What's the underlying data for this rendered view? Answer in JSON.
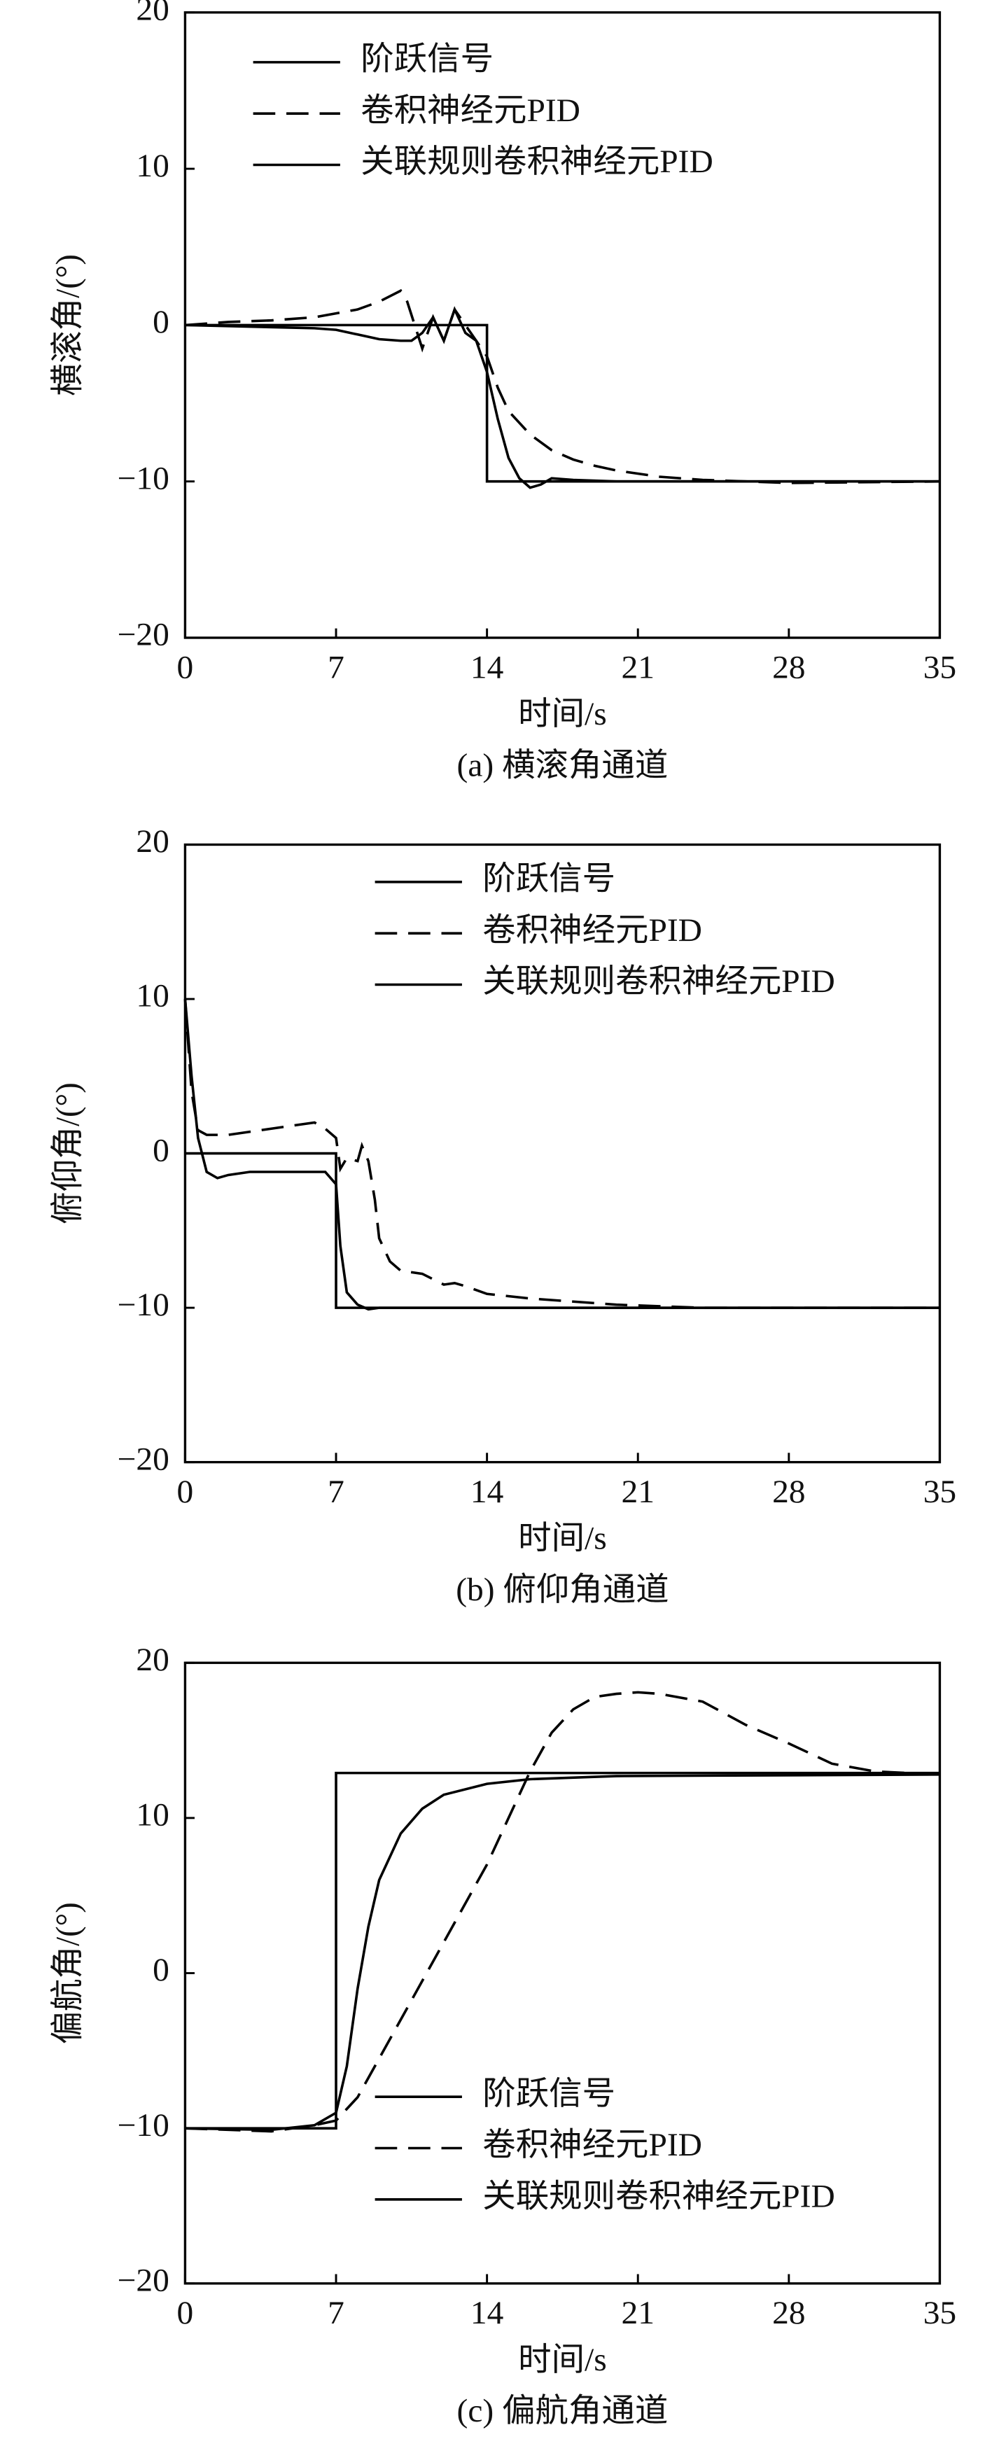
{
  "chart_data": [
    {
      "type": "line",
      "caption": "(a) 横滚角通道",
      "xlabel": "时间/s",
      "ylabel": "横滚角/(°)",
      "xlim": [
        0,
        35
      ],
      "ylim": [
        -20,
        20
      ],
      "xticks": [
        0,
        7,
        14,
        21,
        28,
        35
      ],
      "yticks": [
        {
          "value": -20,
          "label": "−20"
        },
        {
          "value": -10,
          "label": "−10"
        },
        0,
        10,
        20
      ],
      "series": [
        {
          "name": "阶跃信号",
          "color": "#000000",
          "dash": "solid",
          "x": [
            0,
            14,
            14,
            35
          ],
          "values": [
            0,
            0,
            -10,
            -10
          ]
        },
        {
          "name": "卷积神经元PID",
          "color": "#000000",
          "dash": "dashed",
          "x": [
            0,
            2,
            4,
            6,
            8,
            9,
            10,
            10.3,
            11,
            11.5,
            12,
            12.5,
            13,
            14,
            14.5,
            15,
            16,
            17,
            18,
            19,
            20,
            22,
            24,
            26,
            28,
            35
          ],
          "values": [
            0,
            0.2,
            0.3,
            0.5,
            1,
            1.5,
            2.2,
            1.5,
            -1.5,
            0.5,
            -1,
            1,
            0,
            -2,
            -4,
            -5.5,
            -7,
            -8,
            -8.6,
            -9,
            -9.3,
            -9.7,
            -9.9,
            -10,
            -10.1,
            -10
          ]
        },
        {
          "name": "关联规则卷积神经元PID",
          "color": "#000000",
          "dash": "solid",
          "x": [
            0,
            3,
            6,
            7,
            8,
            9,
            10,
            10.5,
            11,
            11.5,
            12,
            12.5,
            13,
            13.5,
            14,
            14.5,
            15,
            15.5,
            16,
            16.5,
            17,
            18,
            20,
            35
          ],
          "values": [
            0,
            -0.1,
            -0.2,
            -0.3,
            -0.6,
            -0.9,
            -1,
            -1,
            -0.5,
            0.5,
            -1,
            1,
            -0.5,
            -1,
            -3,
            -6,
            -8.5,
            -9.8,
            -10.4,
            -10.2,
            -9.8,
            -9.9,
            -10,
            -10
          ]
        }
      ]
    },
    {
      "type": "line",
      "caption": "(b) 俯仰角通道",
      "xlabel": "时间/s",
      "ylabel": "俯仰角/(°)",
      "xlim": [
        0,
        35
      ],
      "ylim": [
        -20,
        20
      ],
      "xticks": [
        0,
        7,
        14,
        21,
        28,
        35
      ],
      "yticks": [
        {
          "value": -20,
          "label": "−20"
        },
        {
          "value": -10,
          "label": "−10"
        },
        0,
        10,
        20
      ],
      "series": [
        {
          "name": "阶跃信号",
          "color": "#000000",
          "dash": "solid",
          "x": [
            0,
            7,
            7,
            35
          ],
          "values": [
            0,
            0,
            -10,
            -10
          ]
        },
        {
          "name": "卷积神经元PID",
          "color": "#000000",
          "dash": "dashed",
          "x": [
            0,
            0.3,
            0.6,
            1,
            2,
            4,
            5,
            6,
            6.5,
            7,
            7.2,
            7.5,
            8,
            8.2,
            8.5,
            8.8,
            9,
            9.5,
            10,
            11,
            12,
            12.5,
            13,
            14,
            16,
            18,
            20,
            22,
            24,
            35
          ],
          "values": [
            10,
            4,
            1.5,
            1.2,
            1.2,
            1.6,
            1.8,
            2,
            1.6,
            1,
            -1,
            -0.3,
            -0.5,
            0.5,
            -0.5,
            -3,
            -5.5,
            -7,
            -7.6,
            -7.8,
            -8.5,
            -8.4,
            -8.6,
            -9.1,
            -9.4,
            -9.6,
            -9.8,
            -9.9,
            -10,
            -10
          ]
        },
        {
          "name": "关联规则卷积神经元PID",
          "color": "#000000",
          "dash": "solid",
          "x": [
            0,
            0.3,
            0.6,
            1,
            1.5,
            2,
            3,
            5,
            6.5,
            7,
            7.2,
            7.5,
            8,
            8.5,
            9,
            12,
            35
          ],
          "values": [
            10,
            5,
            1,
            -1.2,
            -1.6,
            -1.4,
            -1.2,
            -1.2,
            -1.2,
            -2,
            -6,
            -9,
            -9.8,
            -10.1,
            -10,
            -10,
            -10
          ]
        }
      ]
    },
    {
      "type": "line",
      "caption": "(c) 偏航角通道",
      "xlabel": "时间/s",
      "ylabel": "偏航角/(°)",
      "xlim": [
        0,
        35
      ],
      "ylim": [
        -20,
        20
      ],
      "xticks": [
        0,
        7,
        14,
        21,
        28,
        35
      ],
      "yticks": [
        {
          "value": -20,
          "label": "−20"
        },
        {
          "value": -10,
          "label": "−10"
        },
        0,
        10,
        20
      ],
      "series": [
        {
          "name": "阶跃信号",
          "color": "#000000",
          "dash": "solid",
          "x": [
            0,
            7,
            7,
            35
          ],
          "values": [
            -10,
            -10,
            12.9,
            12.9
          ]
        },
        {
          "name": "卷积神经元PID",
          "color": "#000000",
          "dash": "dashed",
          "x": [
            0,
            4,
            6,
            7,
            8,
            10,
            12,
            14,
            15,
            16,
            17,
            18,
            19,
            20,
            21,
            22,
            24,
            26,
            28,
            30,
            32,
            35
          ],
          "values": [
            -10,
            -10.2,
            -9.8,
            -9.5,
            -8,
            -3,
            2,
            7,
            10,
            13,
            15.5,
            17,
            17.8,
            18,
            18.1,
            18,
            17.5,
            16,
            14.8,
            13.5,
            13,
            12.8
          ]
        },
        {
          "name": "关联规则卷积神经元PID",
          "color": "#000000",
          "dash": "solid",
          "x": [
            0,
            4,
            6,
            7,
            7.5,
            8,
            8.5,
            9,
            10,
            11,
            12,
            14,
            16,
            20,
            35
          ],
          "values": [
            -10,
            -10.1,
            -9.8,
            -9,
            -6,
            -1,
            3,
            6,
            9,
            10.6,
            11.5,
            12.2,
            12.5,
            12.7,
            12.8
          ]
        }
      ]
    }
  ]
}
